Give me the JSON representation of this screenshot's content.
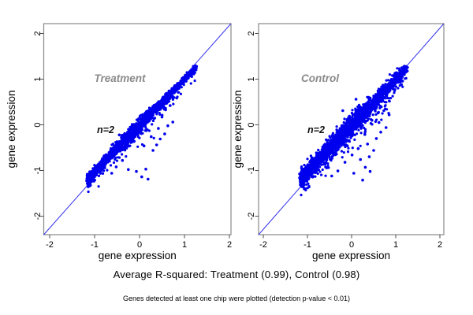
{
  "caption": "Average R-squared: Treatment (0.99), Control (0.98)",
  "footnote": "Genes detected at least one chip were plotted (detection p-value < 0.01)",
  "chart_data": {
    "type": "scatter",
    "point_color": "#0000ee",
    "line_color": "#3333ee",
    "frame_color": "#888888",
    "tick_color": "#4d4d4d",
    "label_color": "#8a8a8a",
    "annotation_color": "#111111",
    "axis_text_color": "#000000",
    "panels": [
      {
        "label": "Treatment",
        "annotation": "n=2",
        "r_squared": 0.99,
        "xlabel": "gene expression",
        "ylabel": "gene expression",
        "x_ticks": [
          -2,
          -1,
          0,
          1,
          2
        ],
        "y_ticks": [
          -2,
          -1,
          0,
          1,
          2
        ],
        "xlim": [
          -2.15,
          2.05
        ],
        "ylim": [
          -2.4,
          2.22
        ],
        "identity_line": true,
        "cloud": {
          "n": 2600,
          "seed": 42,
          "diag_min": -1.15,
          "diag_max": 1.25,
          "band_sd": 0.028,
          "mid_widen": 1.5,
          "down_tail": 0.07,
          "down_prob_peak": 0.28,
          "low_droop": 0.055,
          "fringe_sd": 0.0,
          "fringe_prob": 0.0
        },
        "outliers": [
          [
            -0.52,
            -0.92
          ],
          [
            -0.38,
            -0.78
          ],
          [
            -0.25,
            -0.98
          ],
          [
            -0.07,
            -1.02
          ],
          [
            0.14,
            -0.97
          ],
          [
            0.19,
            -1.19
          ],
          [
            0.05,
            -1.14
          ],
          [
            0.3,
            -0.56
          ],
          [
            0.38,
            -0.44
          ],
          [
            0.46,
            -0.31
          ],
          [
            0.56,
            -0.2
          ],
          [
            0.63,
            -0.02
          ],
          [
            0.74,
            0.06
          ],
          [
            0.5,
            0.17
          ],
          [
            0.26,
            -0.26
          ],
          [
            0.1,
            -0.46
          ],
          [
            -0.12,
            -0.36
          ],
          [
            0.34,
            0.29
          ],
          [
            0.2,
            0.08
          ],
          [
            0.42,
            -0.08
          ],
          [
            -0.62,
            -1.06
          ],
          [
            -0.45,
            -0.22
          ],
          [
            0.58,
            0.33
          ],
          [
            0.68,
            0.42
          ]
        ]
      },
      {
        "label": "Control",
        "annotation": "n=2",
        "r_squared": 0.98,
        "xlabel": "gene expression",
        "ylabel": "gene expression",
        "x_ticks": [
          -2,
          -1,
          0,
          1,
          2
        ],
        "y_ticks": [
          -2,
          -1,
          0,
          1,
          2
        ],
        "xlim": [
          -2.15,
          2.05
        ],
        "ylim": [
          -2.4,
          2.22
        ],
        "identity_line": true,
        "cloud": {
          "n": 2600,
          "seed": 777,
          "diag_min": -1.15,
          "diag_max": 1.25,
          "band_sd": 0.04,
          "mid_widen": 1.7,
          "down_tail": 0.1,
          "down_prob_peak": 0.34,
          "low_droop": 0.055,
          "fringe_sd": 0.09,
          "fringe_prob": 0.2
        },
        "outliers": [
          [
            0.25,
            -1.21
          ],
          [
            0.31,
            -0.93
          ],
          [
            0.42,
            -1.02
          ],
          [
            0.2,
            -0.76
          ],
          [
            0.5,
            -0.56
          ],
          [
            0.36,
            -0.42
          ],
          [
            0.56,
            -0.3
          ],
          [
            0.66,
            -0.16
          ],
          [
            0.46,
            0.1
          ],
          [
            0.6,
            0.26
          ],
          [
            0.73,
            0.31
          ],
          [
            0.3,
            -0.21
          ],
          [
            0.15,
            -0.52
          ],
          [
            0.01,
            -0.66
          ],
          [
            -0.15,
            -0.82
          ],
          [
            -0.31,
            -1.01
          ],
          [
            0.05,
            -1.06
          ],
          [
            0.51,
            0.41
          ],
          [
            0.85,
            0.22
          ],
          [
            0.78,
            -0.06
          ],
          [
            -0.45,
            -1.12
          ],
          [
            0.1,
            0.56
          ],
          [
            -0.2,
            0.31
          ],
          [
            -0.05,
            0.19
          ],
          [
            0.62,
            0.05
          ],
          [
            0.4,
            -0.7
          ]
        ]
      }
    ]
  }
}
